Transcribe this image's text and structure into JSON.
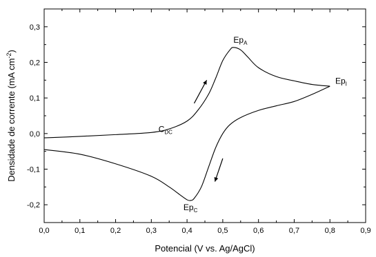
{
  "chart_data": {
    "type": "line",
    "xlabel": "Potencial (V vs. Ag/AgCl)",
    "ylabel": "Densidade de corrente (mA cm",
    "ylabel_superscript": "-2",
    "ylabel_close": ")",
    "xlim": [
      0.0,
      0.9
    ],
    "ylim": [
      -0.25,
      0.35
    ],
    "x_ticks": [
      "0,0",
      "0,1",
      "0,2",
      "0,3",
      "0,4",
      "0,5",
      "0,6",
      "0,7",
      "0,8",
      "0,9"
    ],
    "y_ticks": [
      "-0,2",
      "-0,1",
      "0,0",
      "0,1",
      "0,2",
      "0,3"
    ],
    "grid": false,
    "series": [
      {
        "x": [
          0.0,
          0.1,
          0.2,
          0.3,
          0.35,
          0.4,
          0.43,
          0.46,
          0.48,
          0.5,
          0.52,
          0.53,
          0.55,
          0.57,
          0.6,
          0.65,
          0.7,
          0.75,
          0.8
        ],
        "y": [
          -0.012,
          -0.008,
          -0.003,
          0.003,
          0.013,
          0.035,
          0.065,
          0.11,
          0.155,
          0.205,
          0.235,
          0.242,
          0.235,
          0.215,
          0.185,
          0.16,
          0.148,
          0.138,
          0.133
        ]
      },
      {
        "x": [
          0.8,
          0.75,
          0.7,
          0.65,
          0.6,
          0.55,
          0.52,
          0.5,
          0.48,
          0.46,
          0.44,
          0.42,
          0.41,
          0.4,
          0.38,
          0.35,
          0.3,
          0.2,
          0.1,
          0.0
        ],
        "y": [
          0.133,
          0.11,
          0.09,
          0.078,
          0.065,
          0.045,
          0.025,
          0.0,
          -0.04,
          -0.095,
          -0.15,
          -0.182,
          -0.188,
          -0.186,
          -0.172,
          -0.15,
          -0.12,
          -0.085,
          -0.058,
          -0.045
        ]
      }
    ],
    "annotations": [
      {
        "label": "Ep",
        "sub": "A",
        "x": 0.53,
        "y": 0.255
      },
      {
        "label": "Ep",
        "sub": "I",
        "x": 0.815,
        "y": 0.14
      },
      {
        "label": "C",
        "sub": "DC",
        "x": 0.32,
        "y": 0.005
      },
      {
        "label": "Ep",
        "sub": "C",
        "x": 0.39,
        "y": -0.215
      }
    ],
    "arrows": [
      {
        "from": [
          0.42,
          0.085
        ],
        "to": [
          0.455,
          0.15
        ]
      },
      {
        "from": [
          0.5,
          -0.07
        ],
        "to": [
          0.478,
          -0.135
        ]
      }
    ]
  }
}
